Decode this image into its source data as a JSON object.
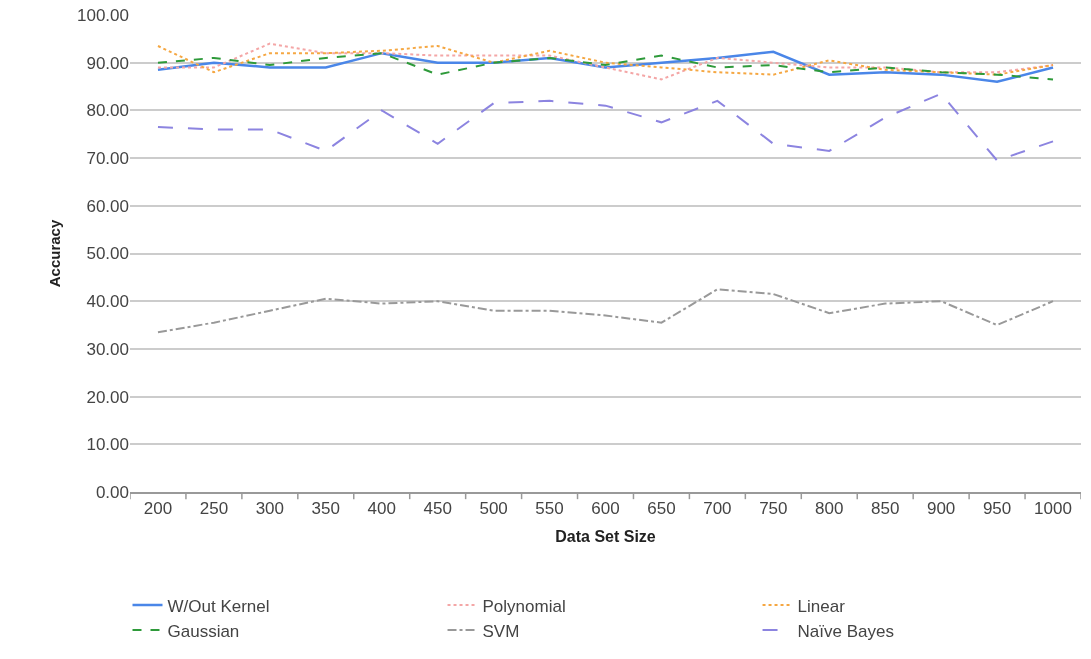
{
  "chart_data": {
    "type": "line",
    "xlabel": "Data Set Size",
    "ylabel": "Accuracy",
    "categories": [
      "200",
      "250",
      "300",
      "350",
      "400",
      "450",
      "500",
      "550",
      "600",
      "650",
      "700",
      "750",
      "800",
      "850",
      "900",
      "950",
      "1000"
    ],
    "ylim": [
      0,
      100
    ],
    "yticks": [
      {
        "value": 0,
        "label": "0.00"
      },
      {
        "value": 10,
        "label": "10.00"
      },
      {
        "value": 20,
        "label": "20.00"
      },
      {
        "value": 30,
        "label": "30.00"
      },
      {
        "value": 40,
        "label": "40.00"
      },
      {
        "value": 50,
        "label": "50.00"
      },
      {
        "value": 60,
        "label": "60.00"
      },
      {
        "value": 70,
        "label": "70.00"
      },
      {
        "value": 80,
        "label": "80.00"
      },
      {
        "value": 90,
        "label": "90.00"
      },
      {
        "value": 100,
        "label": "100.00"
      }
    ],
    "grid": "y",
    "legend": "bottom",
    "marker": "none",
    "series": [
      {
        "name": "W/Out Kernel",
        "color": "#4a86e8",
        "line_style": "solid",
        "values": [
          88.5,
          90,
          89,
          89,
          92,
          90,
          90,
          91,
          89,
          90,
          91,
          92.3,
          87.5,
          88,
          87.5,
          86,
          89
        ]
      },
      {
        "name": "Polynomial",
        "color": "#f4a6a6",
        "line_style": "dotted",
        "values": [
          89,
          89,
          94,
          92,
          92,
          91.5,
          91.5,
          91.5,
          89,
          86.5,
          91,
          90,
          89,
          89,
          88,
          88,
          89.5
        ]
      },
      {
        "name": "Linear",
        "color": "#f5a742",
        "line_style": "dotted",
        "values": [
          93.5,
          88,
          92,
          92,
          92.5,
          93.5,
          90,
          92.5,
          90,
          89,
          88,
          87.5,
          90.5,
          88.5,
          88,
          87.5,
          89.5
        ]
      },
      {
        "name": "Gaussian",
        "color": "#2e9a3a",
        "line_style": "dashed",
        "values": [
          90,
          91,
          89.5,
          91,
          92,
          87.5,
          90,
          91,
          89.5,
          91.5,
          89,
          89.5,
          88,
          89,
          88,
          87.5,
          86.5
        ]
      },
      {
        "name": "SVM",
        "color": "#999999",
        "line_style": "dashdot",
        "values": [
          33.5,
          35.5,
          38,
          40.5,
          39.5,
          40,
          38,
          38,
          37,
          35.5,
          42.5,
          41.5,
          37.5,
          39.5,
          40,
          35,
          40
        ]
      },
      {
        "name": "Naïve Bayes",
        "color": "#8c84e0",
        "line_style": "longdash",
        "values": [
          76.5,
          76,
          76,
          71.5,
          80,
          73,
          81.5,
          82,
          81,
          77.5,
          82,
          73,
          71.5,
          78.5,
          83.5,
          69.5,
          73.5
        ]
      }
    ]
  }
}
